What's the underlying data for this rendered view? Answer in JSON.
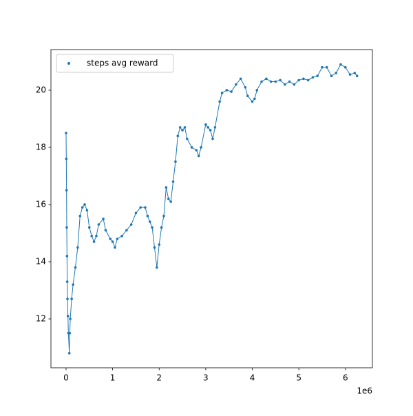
{
  "chart_data": {
    "type": "scatter",
    "x": [
      0,
      5000,
      10000,
      15000,
      20000,
      25000,
      30000,
      40000,
      50000,
      70000,
      80000,
      90000,
      120000,
      150000,
      200000,
      250000,
      300000,
      350000,
      400000,
      450000,
      500000,
      550000,
      600000,
      650000,
      700000,
      800000,
      850000,
      950000,
      1000000,
      1050000,
      1100000,
      1200000,
      1300000,
      1400000,
      1500000,
      1600000,
      1700000,
      1750000,
      1800000,
      1850000,
      1900000,
      1950000,
      2000000,
      2050000,
      2100000,
      2150000,
      2200000,
      2250000,
      2300000,
      2350000,
      2400000,
      2450000,
      2500000,
      2550000,
      2600000,
      2700000,
      2800000,
      2850000,
      2900000,
      3000000,
      3050000,
      3100000,
      3150000,
      3200000,
      3300000,
      3350000,
      3450000,
      3550000,
      3650000,
      3750000,
      3850000,
      3900000,
      4000000,
      4050000,
      4100000,
      4200000,
      4300000,
      4400000,
      4500000,
      4600000,
      4700000,
      4800000,
      4900000,
      5000000,
      5100000,
      5200000,
      5300000,
      5400000,
      5500000,
      5600000,
      5700000,
      5800000,
      5900000,
      6000000,
      6100000,
      6200000,
      6250000
    ],
    "series": [
      {
        "name": "steps avg reward",
        "color": "#1f77b4",
        "values": [
          18.5,
          17.6,
          16.5,
          15.2,
          14.2,
          13.3,
          12.7,
          12.1,
          11.5,
          10.8,
          11.5,
          12.0,
          12.7,
          13.2,
          13.8,
          14.5,
          15.6,
          15.9,
          16.0,
          15.8,
          15.2,
          14.9,
          14.7,
          14.9,
          15.3,
          15.5,
          15.1,
          14.8,
          14.7,
          14.5,
          14.8,
          14.9,
          15.1,
          15.3,
          15.7,
          15.9,
          15.9,
          15.6,
          15.4,
          15.2,
          14.5,
          13.8,
          14.6,
          15.2,
          15.6,
          16.6,
          16.2,
          16.1,
          16.8,
          17.5,
          18.4,
          18.7,
          18.6,
          18.7,
          18.3,
          18.0,
          17.9,
          17.7,
          18.0,
          18.8,
          18.7,
          18.6,
          18.3,
          18.7,
          19.6,
          19.9,
          20.0,
          19.95,
          20.2,
          20.4,
          20.1,
          19.8,
          19.6,
          19.7,
          20.0,
          20.3,
          20.4,
          20.3,
          20.3,
          20.35,
          20.2,
          20.3,
          20.2,
          20.35,
          20.4,
          20.35,
          20.45,
          20.5,
          20.8,
          20.8,
          20.5,
          20.6,
          20.9,
          20.8,
          20.55,
          20.6,
          20.5
        ]
      }
    ],
    "xlim": [
      -325000,
      6580000
    ],
    "ylim": [
      10.29,
      21.42
    ],
    "xticks": [
      0,
      {
        "value": 1000000,
        "label": "1"
      },
      {
        "value": 2000000,
        "label": "2"
      },
      {
        "value": 3000000,
        "label": "3"
      },
      {
        "value": 4000000,
        "label": "4"
      },
      {
        "value": 5000000,
        "label": "5"
      },
      {
        "value": 6000000,
        "label": "6"
      }
    ],
    "yticks": [
      12,
      14,
      16,
      18,
      20
    ],
    "x_offset_label": "1e6",
    "legend": "upper left",
    "grid": false
  }
}
